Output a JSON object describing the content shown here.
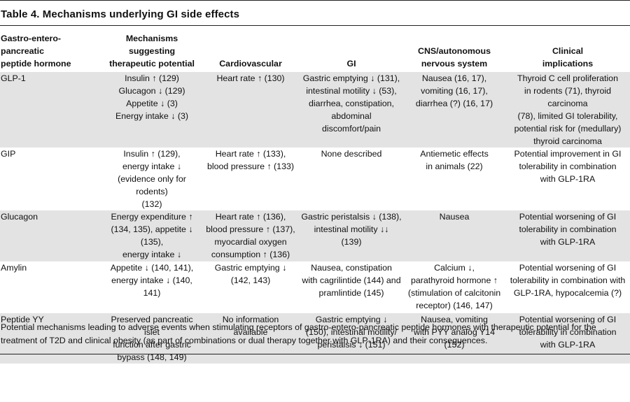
{
  "table": {
    "title": "Table 4. Mechanisms underlying GI side effects",
    "headers": [
      "Gastro-entero-pancreatic\npeptide hormone",
      "Mechanisms suggesting\ntherapeutic potential",
      "Cardiovascular",
      "GI",
      "CNS/autonomous\nnervous system",
      "Clinical\nimplications"
    ],
    "rows": [
      {
        "hormone": "GLP-1",
        "mechanisms": "Insulin ↑ (129)\nGlucagon ↓ (129)\nAppetite ↓ (3)\nEnergy intake ↓ (3)",
        "cardiovascular": "Heart rate ↑ (130)",
        "gi": "Gastric emptying ↓ (131),\nintestinal motility ↓ (53),\ndiarrhea, constipation,\nabdominal\ndiscomfort/pain",
        "cns": "Nausea (16, 17),\nvomiting (16, 17),\ndiarrhea (?) (16, 17)",
        "clinical": "Thyroid C cell proliferation\nin rodents (71), thyroid carcinoma\n(78), limited GI tolerability,\npotential risk for (medullary)\nthyroid carcinoma"
      },
      {
        "hormone": "GIP",
        "mechanisms": "Insulin ↑ (129),\nenergy intake ↓\n(evidence only for rodents)\n(132)",
        "cardiovascular": "Heart rate ↑ (133),\nblood pressure ↑ (133)",
        "gi": "None described",
        "cns": "Antiemetic effects\nin animals (22)",
        "clinical": "Potential improvement in GI\ntolerability in combination\nwith GLP-1RA"
      },
      {
        "hormone": "Glucagon",
        "mechanisms": "Energy expenditure ↑\n(134, 135), appetite ↓ (135),\nenergy intake ↓",
        "cardiovascular": "Heart rate ↑ (136),\nblood pressure ↑ (137),\nmyocardial oxygen\nconsumption ↑ (136)",
        "gi": "Gastric peristalsis ↓ (138),\nintestinal motility ↓↓\n(139)",
        "cns": "Nausea",
        "clinical": "Potential worsening of GI\ntolerability in combination\nwith GLP-1RA"
      },
      {
        "hormone": "Amylin",
        "mechanisms": "Appetite ↓ (140, 141),\nenergy intake ↓ (140, 141)",
        "cardiovascular": "Gastric emptying ↓\n(142, 143)",
        "gi": "Nausea, constipation\nwith cagrilintide (144) and\npramlintide (145)",
        "cns": "Calcium ↓,\nparathyroid hormone ↑\n(stimulation of calcitonin\nreceptor) (146, 147)",
        "clinical": "Potential worsening of GI\ntolerability in combination with\nGLP-1RA, hypocalcemia (?)"
      },
      {
        "hormone": "Peptide YY",
        "mechanisms": "Preserved pancreatic islet\nfunction after gastric\nbypass (148, 149)",
        "cardiovascular": "No information\navailable",
        "gi": "Gastric emptying ↓\n(150), intestinal motility/\nperistalsis ↓ (151)",
        "cns": "Nausea, vomiting\nwith PYY analog Y14 (152)",
        "clinical": "Potential worsening of GI\ntolerability in combination\nwith GLP-1RA"
      }
    ],
    "footnote": "Potential mechanisms leading to adverse events when stimulating receptors of gastro-entero-pancreatic peptide hormones with therapeutic potential for the treatment of T2D and clinical obesity (as part of combinations or dual therapy together with GLP-1RA) and their consequences."
  }
}
